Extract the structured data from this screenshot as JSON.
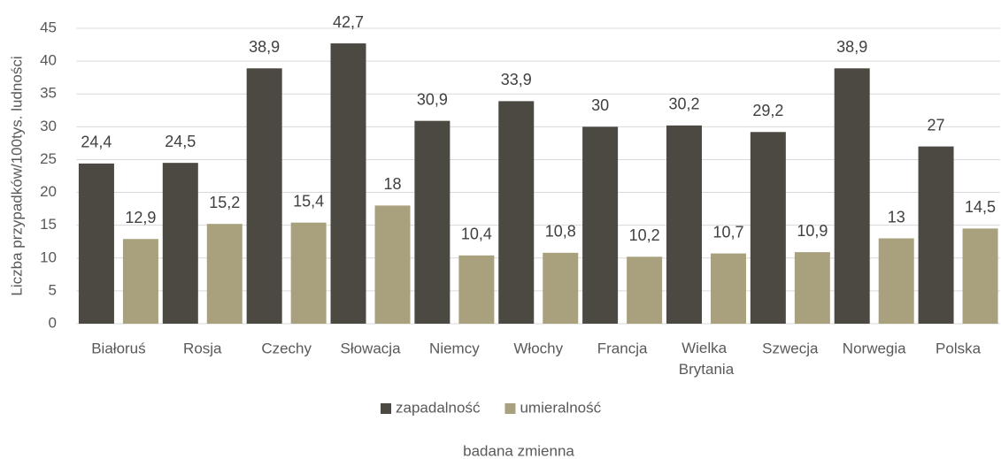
{
  "chart_data": {
    "type": "bar",
    "categories": [
      "Białoruś",
      "Rosja",
      "Czechy",
      "Słowacja",
      "Niemcy",
      "Włochy",
      "Francja",
      "Wielka Brytania",
      "Szwecja",
      "Norwegia",
      "Polska"
    ],
    "series": [
      {
        "name": "zapadalność",
        "color": "#4b4942",
        "values": [
          24.4,
          24.5,
          38.9,
          42.7,
          30.9,
          33.9,
          30,
          30.2,
          29.2,
          38.9,
          27
        ],
        "value_labels": [
          "24,4",
          "24,5",
          "38,9",
          "42,7",
          "30,9",
          "33,9",
          "30",
          "30,2",
          "29,2",
          "38,9",
          "27"
        ]
      },
      {
        "name": "umieralność",
        "color": "#a9a17d",
        "values": [
          12.9,
          15.2,
          15.4,
          18,
          10.4,
          10.8,
          10.2,
          10.7,
          10.9,
          13,
          14.5
        ],
        "value_labels": [
          "12,9",
          "15,2",
          "15,4",
          "18",
          "10,4",
          "10,8",
          "10,2",
          "10,7",
          "10,9",
          "13",
          "14,5"
        ]
      }
    ],
    "y_label": "Liczba przypadków/100tys. ludności",
    "x_label": "badana zmienna",
    "ylim": [
      0,
      45
    ],
    "yticks": [
      0,
      5,
      10,
      15,
      20,
      25,
      30,
      35,
      40,
      45
    ],
    "grid": true,
    "legend": "bottom"
  }
}
